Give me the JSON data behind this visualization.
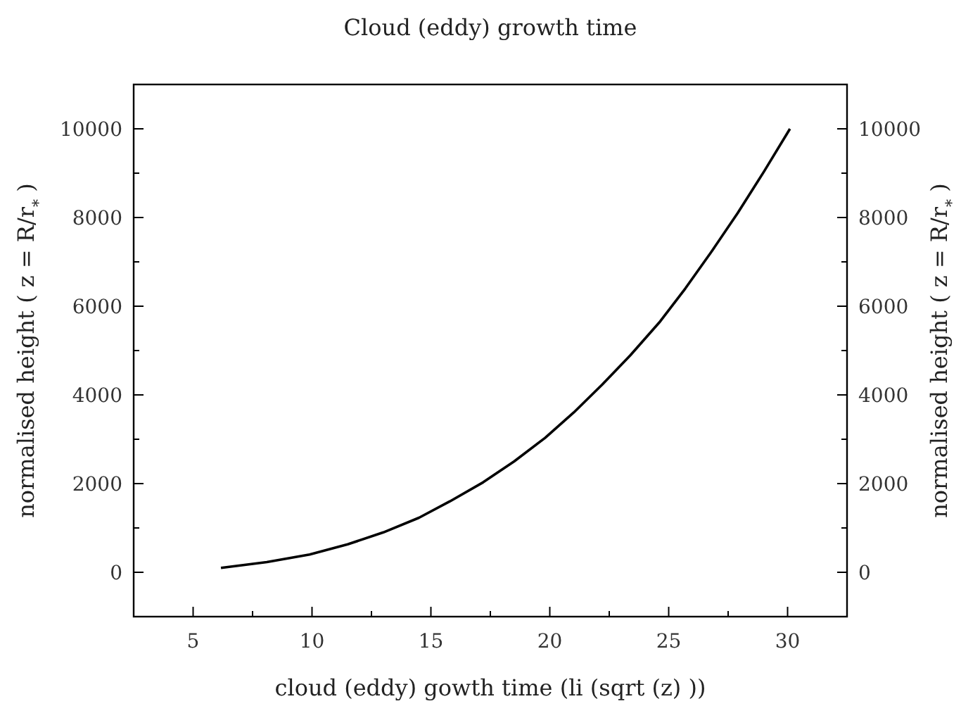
{
  "chart_data": {
    "type": "line",
    "title": "Cloud (eddy) growth time",
    "xlabel": "cloud (eddy) gowth time (li (sqrt (z) ))",
    "ylabel": "normalised height  ( z = R/r$_{*}$ )",
    "y2label": "normalised height  ( z = R/r$_{*}$ )",
    "x": [
      6.17,
      8.1,
      9.9,
      11.5,
      13.0,
      14.5,
      15.8,
      17.2,
      18.5,
      19.8,
      21.0,
      22.2,
      23.4,
      24.6,
      25.7,
      26.8,
      27.9,
      29.0,
      30.1
    ],
    "series": [
      {
        "color": "#000000",
        "values": [
          100,
          230,
          400,
          630,
          900,
          1230,
          1600,
          2030,
          2500,
          3030,
          3600,
          4230,
          4900,
          5630,
          6400,
          7230,
          8100,
          9030,
          10000
        ]
      }
    ],
    "xlim": [
      2.5,
      32.5
    ],
    "xticks": [
      5,
      10,
      15,
      20,
      25,
      30
    ],
    "ylim": [
      -1000,
      11000
    ],
    "yticks": [
      0,
      2000,
      4000,
      6000,
      8000,
      10000
    ],
    "y2lim": [
      -1000,
      11000
    ],
    "y2ticks": [
      0,
      2000,
      4000,
      6000,
      8000,
      10000
    ],
    "marker": "none",
    "line_style": "solid"
  }
}
